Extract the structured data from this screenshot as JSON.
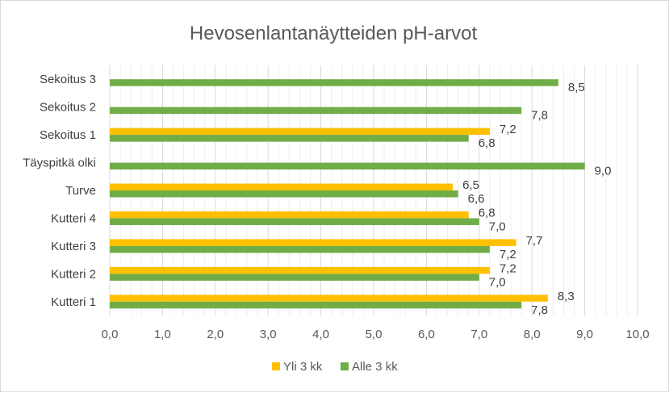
{
  "chart_data": {
    "type": "bar",
    "orientation": "horizontal",
    "title": "Hevosenlantanäytteiden pH-arvot",
    "categories": [
      "Kutteri 1",
      "Kutteri 2",
      "Kutteri 3",
      "Kutteri 4",
      "Turve",
      "Täyspitkä olki",
      "Sekoitus 1",
      "Sekoitus 2",
      "Sekoitus 3"
    ],
    "series": [
      {
        "name": "Yli 3 kk",
        "color": "#ffc000",
        "values": [
          8.3,
          7.2,
          7.7,
          6.8,
          6.5,
          null,
          7.2,
          null,
          null
        ],
        "labels": [
          "8,3",
          "7,2",
          "7,7",
          "6,8",
          "6,5",
          "",
          "7,2",
          "",
          ""
        ]
      },
      {
        "name": "Alle 3 kk",
        "color": "#70ad47",
        "values": [
          7.8,
          7.0,
          7.2,
          7.0,
          6.6,
          9.0,
          6.8,
          7.8,
          8.5
        ],
        "labels": [
          "7,8",
          "7,0",
          "7,2",
          "7,0",
          "6,6",
          "9,0",
          "6,8",
          "7,8",
          "8,5"
        ]
      }
    ],
    "xlim": [
      0,
      10
    ],
    "x_ticks": [
      "0,0",
      "1,0",
      "2,0",
      "3,0",
      "4,0",
      "5,0",
      "6,0",
      "7,0",
      "8,0",
      "9,0",
      "10,0"
    ],
    "grid": "vertical major and minor",
    "legend_position": "bottom"
  }
}
